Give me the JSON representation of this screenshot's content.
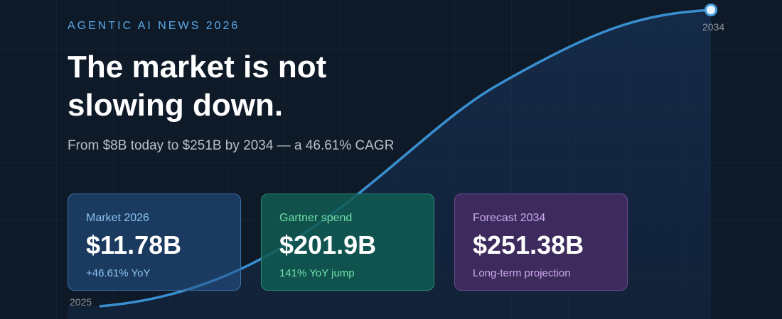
{
  "header": {
    "kicker": "AGENTIC AI NEWS 2026",
    "title_lines": [
      "The market is not",
      "slowing down."
    ],
    "subtitle": "From $8B today to $251B by 2034 — a 46.61% CAGR"
  },
  "curve": {
    "start_label": "2025",
    "end_label": "2034"
  },
  "cards": [
    {
      "label": "Market 2026",
      "value": "$11.78B",
      "note": "+46.61% YoY"
    },
    {
      "label": "Gartner spend",
      "value": "$201.9B",
      "note": "141% YoY jump"
    },
    {
      "label": "Forecast 2034",
      "value": "$251.38B",
      "note": "Long-term projection"
    }
  ]
}
